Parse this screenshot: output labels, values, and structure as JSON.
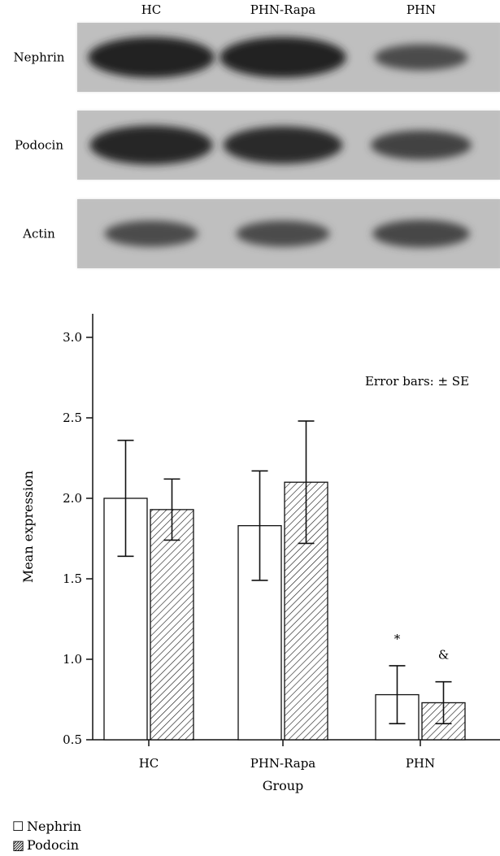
{
  "western_blot": {
    "lanes": [
      "HC",
      "PHN-Rapa",
      "PHN"
    ],
    "rows": [
      "Nephrin",
      "Podocin",
      "Actin"
    ],
    "band_intensity": [
      [
        0.95,
        0.95,
        0.5
      ],
      [
        0.9,
        0.85,
        0.6
      ],
      [
        0.5,
        0.5,
        0.55
      ]
    ]
  },
  "chart_data": {
    "type": "bar",
    "categories": [
      "HC",
      "PHN-Rapa",
      "PHN"
    ],
    "series": [
      {
        "name": "Nephrin",
        "values": [
          2.0,
          1.83,
          0.78
        ],
        "se": [
          0.36,
          0.34,
          0.18
        ],
        "fill": "open"
      },
      {
        "name": "Podocin",
        "values": [
          1.93,
          2.1,
          0.73
        ],
        "se": [
          0.19,
          0.38,
          0.13
        ],
        "fill": "hatched"
      }
    ],
    "xlabel": "Group",
    "ylabel": "Mean expression",
    "ylim": [
      0.5,
      3.0
    ],
    "yticks": [
      "0.5",
      "1.0",
      "1.5",
      "2.0",
      "2.5",
      "3.0"
    ],
    "annotation": "Error bars: ± SE",
    "significance": [
      {
        "category": "PHN",
        "series": "Nephrin",
        "mark": "*"
      },
      {
        "category": "PHN",
        "series": "Podocin",
        "mark": "&"
      }
    ],
    "legend": {
      "position": "bottom-left",
      "entries": [
        {
          "symbol": "☐",
          "label": "Nephrin"
        },
        {
          "symbol": "▨",
          "label": "Podocin"
        }
      ]
    }
  }
}
